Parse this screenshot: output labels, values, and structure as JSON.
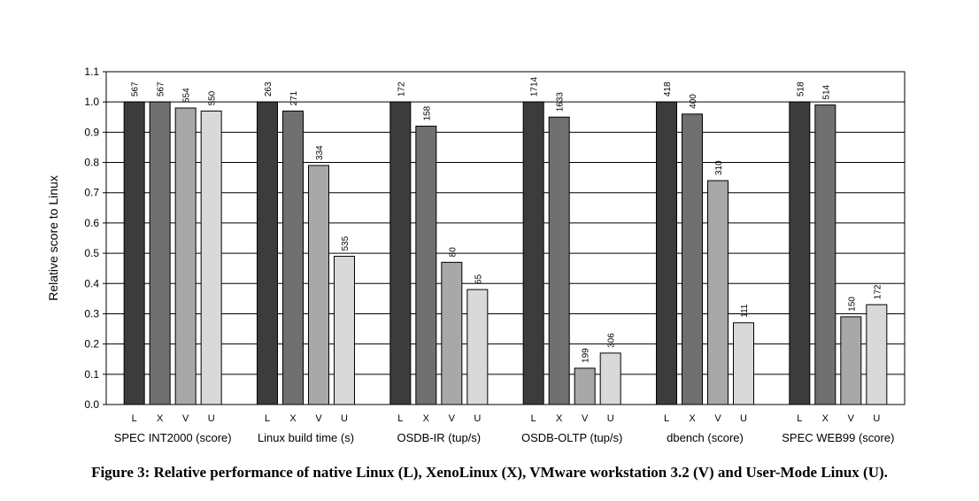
{
  "caption": "Figure 3: Relative performance of native Linux (L), XenoLinux (X), VMware workstation 3.2 (V) and User-Mode Linux (U).",
  "chart_data": {
    "type": "bar",
    "ylabel": "Relative score to Linux",
    "ylim": [
      0.0,
      1.1
    ],
    "yticks": [
      "0.0",
      "0.1",
      "0.2",
      "0.3",
      "0.4",
      "0.5",
      "0.6",
      "0.7",
      "0.8",
      "0.9",
      "1.0",
      "1.1"
    ],
    "grid": true,
    "series_labels": [
      "L",
      "X",
      "V",
      "U"
    ],
    "series_colors": [
      "#3c3c3c",
      "#707070",
      "#a8a8a8",
      "#d9d9d9"
    ],
    "groups": [
      {
        "category": "SPEC INT2000 (score)",
        "values": [
          1.0,
          1.0,
          0.98,
          0.97
        ],
        "labels": [
          "567",
          "567",
          "554",
          "550"
        ]
      },
      {
        "category": "Linux build time (s)",
        "values": [
          1.0,
          0.97,
          0.79,
          0.49
        ],
        "labels": [
          "263",
          "271",
          "334",
          "535"
        ]
      },
      {
        "category": "OSDB-IR (tup/s)",
        "values": [
          1.0,
          0.92,
          0.47,
          0.38
        ],
        "labels": [
          "172",
          "158",
          "80",
          "65"
        ]
      },
      {
        "category": "OSDB-OLTP (tup/s)",
        "values": [
          1.0,
          0.95,
          0.12,
          0.17
        ],
        "labels": [
          "1714",
          "1633",
          "199",
          "306"
        ]
      },
      {
        "category": "dbench (score)",
        "values": [
          1.0,
          0.96,
          0.74,
          0.27
        ],
        "labels": [
          "418",
          "400",
          "310",
          "111"
        ]
      },
      {
        "category": "SPEC WEB99 (score)",
        "values": [
          1.0,
          0.99,
          0.29,
          0.33
        ],
        "labels": [
          "518",
          "514",
          "150",
          "172"
        ]
      }
    ]
  }
}
